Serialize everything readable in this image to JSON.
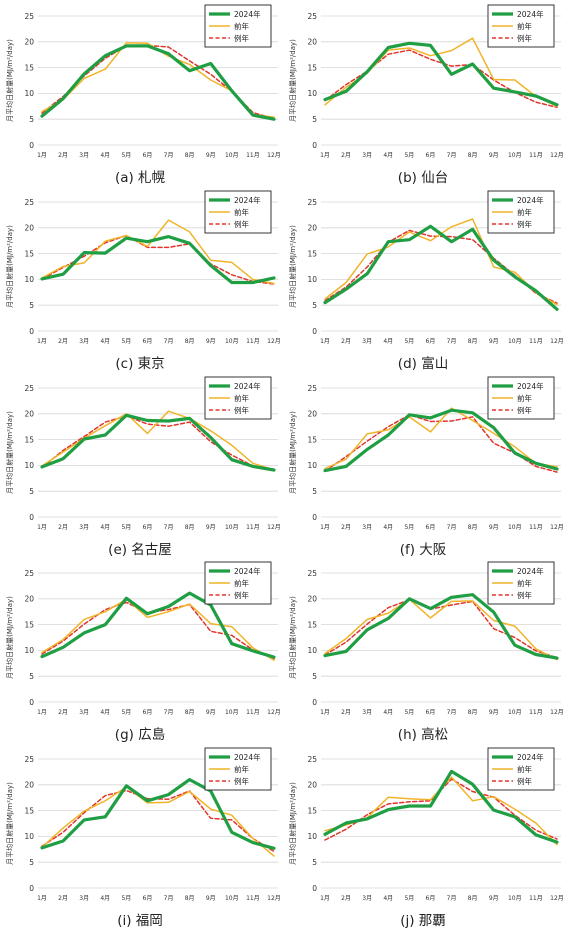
{
  "legend_labels": [
    "2024年",
    "前年",
    "例年"
  ],
  "y_axis_label": "月平均日射量(MJ/m²/day)",
  "months": [
    "1月",
    "2月",
    "3月",
    "4月",
    "5月",
    "6月",
    "7月",
    "8月",
    "9月",
    "10月",
    "11月",
    "12月"
  ],
  "colors": {
    "s2024": "#1f9e44",
    "prev": "#f0b429",
    "normal": "#e0352b"
  },
  "chart_data": [
    {
      "type": "line",
      "caption": "(a) 札幌",
      "ylim": [
        0,
        25
      ],
      "yticks": [
        0,
        5,
        10,
        15,
        20,
        25
      ],
      "categories": [
        "1月",
        "2月",
        "3月",
        "4月",
        "5月",
        "6月",
        "7月",
        "8月",
        "9月",
        "10月",
        "11月",
        "12月"
      ],
      "series": [
        {
          "name": "2024年",
          "values": [
            5.6,
            9.0,
            13.8,
            17.3,
            19.2,
            19.2,
            17.7,
            14.4,
            15.8,
            10.5,
            5.8,
            5.0
          ]
        },
        {
          "name": "前年",
          "values": [
            6.5,
            8.8,
            12.9,
            14.7,
            19.8,
            19.7,
            17.2,
            15.6,
            12.6,
            10.5,
            5.9,
            5.4
          ]
        },
        {
          "name": "例年",
          "values": [
            6.2,
            9.4,
            13.4,
            16.8,
            19.2,
            19.3,
            19.0,
            16.3,
            13.7,
            10.4,
            6.3,
            5.1
          ]
        }
      ]
    },
    {
      "type": "line",
      "caption": "(b) 仙台",
      "ylim": [
        0,
        25
      ],
      "yticks": [
        0,
        5,
        10,
        15,
        20,
        25
      ],
      "categories": [
        "1月",
        "2月",
        "3月",
        "4月",
        "5月",
        "6月",
        "7月",
        "8月",
        "9月",
        "10月",
        "11月",
        "12月"
      ],
      "series": [
        {
          "name": "2024年",
          "values": [
            8.8,
            10.4,
            14.2,
            18.9,
            19.7,
            19.3,
            13.7,
            15.7,
            11.0,
            10.3,
            9.5,
            7.8
          ]
        },
        {
          "name": "前年",
          "values": [
            7.8,
            11.2,
            13.9,
            18.4,
            18.8,
            17.3,
            18.3,
            20.7,
            12.7,
            12.6,
            9.4,
            7.5
          ]
        },
        {
          "name": "例年",
          "values": [
            8.6,
            11.7,
            14.3,
            17.6,
            18.4,
            16.6,
            15.3,
            15.6,
            12.6,
            10.2,
            8.3,
            7.3
          ]
        }
      ]
    },
    {
      "type": "line",
      "caption": "(c) 東京",
      "ylim": [
        0,
        25
      ],
      "yticks": [
        0,
        5,
        10,
        15,
        20,
        25
      ],
      "categories": [
        "1月",
        "2月",
        "3月",
        "4月",
        "5月",
        "6月",
        "7月",
        "8月",
        "9月",
        "10月",
        "11月",
        "12月"
      ],
      "series": [
        {
          "name": "2024年",
          "values": [
            10.1,
            11.0,
            15.2,
            15.1,
            18.0,
            17.3,
            18.3,
            17.0,
            12.7,
            9.4,
            9.4,
            10.3
          ]
        },
        {
          "name": "前年",
          "values": [
            10.3,
            12.5,
            13.2,
            17.4,
            18.5,
            16.4,
            21.5,
            19.2,
            13.7,
            13.3,
            10.0,
            9.2
          ]
        },
        {
          "name": "例年",
          "values": [
            10.1,
            12.3,
            14.5,
            17.1,
            18.5,
            16.2,
            16.2,
            16.9,
            13.0,
            10.9,
            9.6,
            9.1
          ]
        }
      ]
    },
    {
      "type": "line",
      "caption": "(d) 富山",
      "ylim": [
        0,
        25
      ],
      "yticks": [
        0,
        5,
        10,
        15,
        20,
        25
      ],
      "categories": [
        "1月",
        "2月",
        "3月",
        "4月",
        "5月",
        "6月",
        "7月",
        "8月",
        "9月",
        "10月",
        "11月",
        "12月"
      ],
      "series": [
        {
          "name": "2024年",
          "values": [
            5.5,
            8.1,
            11.1,
            17.3,
            17.7,
            20.3,
            17.3,
            19.7,
            13.7,
            10.5,
            7.8,
            4.2
          ]
        },
        {
          "name": "前年",
          "values": [
            6.2,
            9.4,
            14.9,
            16.3,
            19.2,
            17.5,
            20.2,
            21.7,
            12.4,
            11.4,
            7.5,
            5.1
          ]
        },
        {
          "name": "例年",
          "values": [
            5.9,
            8.5,
            12.4,
            17.2,
            19.5,
            18.4,
            18.3,
            17.7,
            14.1,
            10.8,
            7.3,
            5.4
          ]
        }
      ]
    },
    {
      "type": "line",
      "caption": "(e) 名古屋",
      "ylim": [
        0,
        25
      ],
      "yticks": [
        0,
        5,
        10,
        15,
        20,
        25
      ],
      "categories": [
        "1月",
        "2月",
        "3月",
        "4月",
        "5月",
        "6月",
        "7月",
        "8月",
        "9月",
        "10月",
        "11月",
        "12月"
      ],
      "series": [
        {
          "name": "2024年",
          "values": [
            9.7,
            11.3,
            15.1,
            15.9,
            19.7,
            18.7,
            18.6,
            19.1,
            15.4,
            11.1,
            9.8,
            9.1
          ]
        },
        {
          "name": "前年",
          "values": [
            9.9,
            12.6,
            15.3,
            17.7,
            20.0,
            16.2,
            20.5,
            19.1,
            16.7,
            13.9,
            10.4,
            9.1
          ]
        },
        {
          "name": "例年",
          "values": [
            9.6,
            12.9,
            15.6,
            18.4,
            19.6,
            18.0,
            17.6,
            18.4,
            14.6,
            12.0,
            9.9,
            9.1
          ]
        }
      ]
    },
    {
      "type": "line",
      "caption": "(f) 大阪",
      "ylim": [
        0,
        25
      ],
      "yticks": [
        0,
        5,
        10,
        15,
        20,
        25
      ],
      "categories": [
        "1月",
        "2月",
        "3月",
        "4月",
        "5月",
        "6月",
        "7月",
        "8月",
        "9月",
        "10月",
        "11月",
        "12月"
      ],
      "series": [
        {
          "name": "2024年",
          "values": [
            9.0,
            9.8,
            13.1,
            15.9,
            19.8,
            19.2,
            20.7,
            20.2,
            17.3,
            12.4,
            10.4,
            9.3
          ]
        },
        {
          "name": "前年",
          "values": [
            9.4,
            11.2,
            16.1,
            16.9,
            19.4,
            16.5,
            21.1,
            18.7,
            16.2,
            13.6,
            10.4,
            9.7
          ]
        },
        {
          "name": "例年",
          "values": [
            8.9,
            11.7,
            14.7,
            17.5,
            19.8,
            18.5,
            18.6,
            19.4,
            14.3,
            12.4,
            9.8,
            8.7
          ]
        }
      ]
    },
    {
      "type": "line",
      "caption": "(g) 広島",
      "ylim": [
        0,
        25
      ],
      "yticks": [
        0,
        5,
        10,
        15,
        20,
        25
      ],
      "categories": [
        "1月",
        "2月",
        "3月",
        "4月",
        "5月",
        "6月",
        "7月",
        "8月",
        "9月",
        "10月",
        "11月",
        "12月"
      ],
      "series": [
        {
          "name": "2024年",
          "values": [
            8.8,
            10.6,
            13.4,
            15.0,
            20.1,
            17.1,
            18.5,
            21.1,
            18.8,
            11.3,
            9.9,
            8.7
          ]
        },
        {
          "name": "前年",
          "values": [
            9.6,
            12.1,
            16.0,
            17.5,
            19.9,
            16.4,
            17.5,
            19.0,
            15.2,
            14.6,
            10.5,
            8.1
          ]
        },
        {
          "name": "例年",
          "values": [
            9.3,
            11.8,
            15.1,
            17.9,
            19.3,
            17.3,
            17.9,
            18.9,
            13.7,
            12.9,
            10.1,
            8.4
          ]
        }
      ]
    },
    {
      "type": "line",
      "caption": "(h) 高松",
      "ylim": [
        0,
        25
      ],
      "yticks": [
        0,
        5,
        10,
        15,
        20,
        25
      ],
      "categories": [
        "1月",
        "2月",
        "3月",
        "4月",
        "5月",
        "6月",
        "7月",
        "8月",
        "9月",
        "10月",
        "11月",
        "12月"
      ],
      "series": [
        {
          "name": "2024年",
          "values": [
            9.0,
            9.8,
            14.0,
            16.2,
            20.0,
            18.1,
            20.3,
            20.8,
            17.4,
            11.0,
            9.2,
            8.5
          ]
        },
        {
          "name": "前年",
          "values": [
            9.4,
            12.3,
            16.0,
            17.2,
            19.9,
            16.3,
            19.5,
            19.6,
            15.8,
            14.7,
            10.3,
            8.2
          ]
        },
        {
          "name": "例年",
          "values": [
            9.1,
            11.6,
            15.1,
            18.3,
            19.8,
            18.0,
            18.8,
            19.5,
            14.2,
            12.5,
            9.9,
            8.6
          ]
        }
      ]
    },
    {
      "type": "line",
      "caption": "(i) 福岡",
      "ylim": [
        0,
        25
      ],
      "yticks": [
        0,
        5,
        10,
        15,
        20,
        25
      ],
      "categories": [
        "1月",
        "2月",
        "3月",
        "4月",
        "5月",
        "6月",
        "7月",
        "8月",
        "9月",
        "10月",
        "11月",
        "12月"
      ],
      "series": [
        {
          "name": "2024年",
          "values": [
            7.8,
            9.1,
            13.2,
            13.8,
            19.8,
            16.9,
            18.1,
            21.0,
            18.8,
            10.8,
            8.8,
            7.7
          ]
        },
        {
          "name": "前年",
          "values": [
            7.9,
            11.6,
            14.9,
            16.9,
            19.6,
            16.5,
            16.6,
            18.7,
            15.3,
            14.1,
            9.6,
            6.2
          ]
        },
        {
          "name": "例年",
          "values": [
            8.1,
            10.8,
            14.6,
            17.9,
            18.9,
            17.3,
            17.2,
            18.8,
            13.5,
            13.2,
            9.6,
            7.1
          ]
        }
      ]
    },
    {
      "type": "line",
      "caption": "(j) 那覇",
      "ylim": [
        0,
        25
      ],
      "yticks": [
        0,
        5,
        10,
        15,
        20,
        25
      ],
      "categories": [
        "1月",
        "2月",
        "3月",
        "4月",
        "5月",
        "6月",
        "7月",
        "8月",
        "9月",
        "10月",
        "11月",
        "12月"
      ],
      "series": [
        {
          "name": "2024年",
          "values": [
            10.4,
            12.6,
            13.4,
            15.2,
            15.9,
            15.9,
            22.6,
            20.1,
            15.1,
            13.8,
            10.3,
            8.9
          ]
        },
        {
          "name": "前年",
          "values": [
            11.1,
            12.2,
            13.6,
            17.6,
            17.3,
            17.1,
            21.5,
            16.9,
            17.7,
            15.3,
            12.6,
            8.4
          ]
        },
        {
          "name": "例年",
          "values": [
            9.3,
            11.4,
            14.2,
            16.3,
            16.7,
            16.9,
            21.1,
            18.7,
            17.6,
            14.1,
            11.2,
            9.5
          ]
        }
      ]
    }
  ]
}
